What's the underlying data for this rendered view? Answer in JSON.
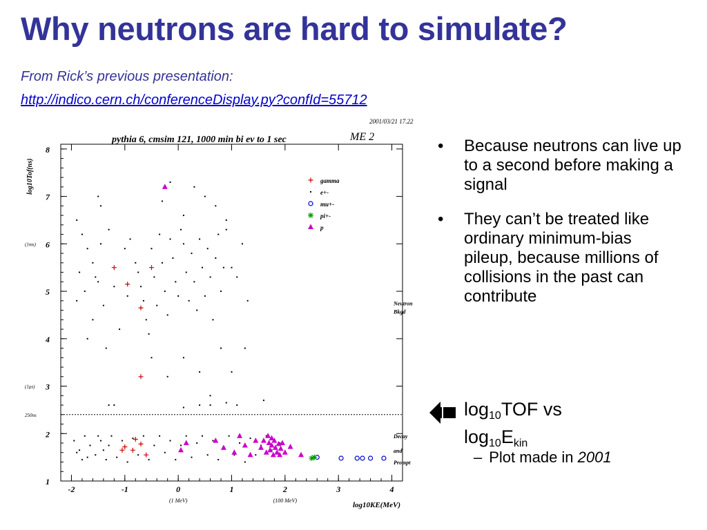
{
  "slide": {
    "title": "Why neutrons are hard to simulate?",
    "subtitle": "From Rick’s previous presentation:",
    "link": "http://indico.cern.ch/conferenceDisplay.py?confId=55712"
  },
  "bullets": {
    "marker": "•",
    "item1": "Because neutrons can live up to a second before making a signal",
    "item2": "They can’t be treated like ordinary minimum-bias pileup, because millions of collisions in the past can contribute",
    "log_main_a": "log",
    "log_sub_a": "10",
    "log_main_b": "TOF vs",
    "log_main_c": "log",
    "log_sub_c": "10",
    "log_main_d": "E",
    "log_sub_d": "kin",
    "sub_dash": "–",
    "sub_text": "Plot made in ",
    "sub_year": "2001"
  },
  "chart_data": {
    "type": "scatter",
    "title": "pythia 6, cmsim 121, 1000 min bi ev to 1 sec",
    "corner_label": "ME 2",
    "timestamp": "2001/03/21   17.22",
    "xlabel": "log10KE(MeV)",
    "ylabel": "log10Tof(ns)",
    "xlim": [
      -2.2,
      4.2
    ],
    "ylim": [
      1,
      8.1
    ],
    "xticks": [
      -2,
      -1,
      0,
      1,
      2,
      3,
      4
    ],
    "yticks": [
      1,
      2,
      3,
      4,
      5,
      6,
      7,
      8
    ],
    "x_annotations": [
      {
        "x": 0,
        "text": "(1 MeV)"
      },
      {
        "x": 2,
        "text": "(100 MeV)"
      }
    ],
    "y_annotations": [
      {
        "y": 6.0,
        "text": "(1ms)"
      },
      {
        "y": 3.0,
        "text": "(1μs)"
      },
      {
        "y": 2.4,
        "text": "250ns"
      }
    ],
    "threshold_line": {
      "y": 2.4,
      "style": "dashed"
    },
    "right_annotations": [
      {
        "y": 4.7,
        "lines": [
          "Neutron",
          "Bkgd"
        ]
      },
      {
        "y": 1.9,
        "lines": [
          "Decay"
        ]
      },
      {
        "y": 1.6,
        "lines": [
          "and"
        ]
      },
      {
        "y": 1.35,
        "lines": [
          "Prompt"
        ]
      }
    ],
    "legend_position": "top-right",
    "series": [
      {
        "name": "gamma",
        "marker": "plus",
        "color": "#cc0000",
        "points": [
          [
            -1.2,
            5.5
          ],
          [
            -0.95,
            5.15
          ],
          [
            -0.7,
            4.65
          ],
          [
            -0.5,
            5.5
          ],
          [
            -0.7,
            3.2
          ],
          [
            -0.8,
            1.88
          ],
          [
            -1.05,
            1.65
          ],
          [
            -0.85,
            1.65
          ],
          [
            -0.6,
            1.55
          ],
          [
            -0.7,
            1.78
          ],
          [
            -1.0,
            1.72
          ]
        ]
      },
      {
        "name": "e+-",
        "marker": "dot",
        "color": "#000000",
        "points": [
          [
            -1.9,
            6.5
          ],
          [
            -1.8,
            6.2
          ],
          [
            -1.7,
            5.9
          ],
          [
            -1.6,
            5.6
          ],
          [
            -1.85,
            5.4
          ],
          [
            -1.75,
            5.0
          ],
          [
            -1.9,
            4.8
          ],
          [
            -1.6,
            4.4
          ],
          [
            -1.7,
            4.0
          ],
          [
            -1.55,
            5.3
          ],
          [
            -1.45,
            6.0
          ],
          [
            -1.5,
            5.2
          ],
          [
            -1.4,
            4.7
          ],
          [
            -1.35,
            3.8
          ],
          [
            -1.3,
            6.3
          ],
          [
            -1.2,
            5.1
          ],
          [
            -1.1,
            4.2
          ],
          [
            -1.0,
            5.9
          ],
          [
            -0.95,
            4.9
          ],
          [
            -0.9,
            6.1
          ],
          [
            -0.8,
            5.6
          ],
          [
            -0.75,
            5.4
          ],
          [
            -0.7,
            5.1
          ],
          [
            -0.65,
            4.8
          ],
          [
            -0.6,
            4.4
          ],
          [
            -0.55,
            4.1
          ],
          [
            -0.5,
            5.9
          ],
          [
            -0.45,
            5.3
          ],
          [
            -0.4,
            4.7
          ],
          [
            -0.35,
            6.2
          ],
          [
            -0.3,
            5.6
          ],
          [
            -0.25,
            5.0
          ],
          [
            -0.2,
            4.5
          ],
          [
            -0.15,
            6.1
          ],
          [
            -0.1,
            5.7
          ],
          [
            -0.05,
            5.2
          ],
          [
            0.0,
            4.9
          ],
          [
            0.05,
            6.3
          ],
          [
            0.1,
            6.0
          ],
          [
            0.15,
            5.4
          ],
          [
            0.2,
            4.8
          ],
          [
            0.25,
            5.8
          ],
          [
            0.3,
            5.2
          ],
          [
            0.35,
            4.6
          ],
          [
            0.4,
            6.1
          ],
          [
            0.45,
            5.5
          ],
          [
            0.5,
            4.9
          ],
          [
            0.55,
            5.9
          ],
          [
            0.6,
            5.3
          ],
          [
            0.65,
            4.4
          ],
          [
            0.7,
            5.7
          ],
          [
            0.75,
            6.2
          ],
          [
            0.8,
            5.0
          ],
          [
            0.85,
            5.5
          ],
          [
            0.9,
            6.3
          ],
          [
            1.0,
            5.5
          ],
          [
            1.1,
            5.3
          ],
          [
            1.2,
            6.0
          ],
          [
            1.3,
            4.8
          ],
          [
            1.25,
            3.8
          ],
          [
            -0.3,
            6.9
          ],
          [
            -0.15,
            7.3
          ],
          [
            0.1,
            6.6
          ],
          [
            0.3,
            7.2
          ],
          [
            0.5,
            7.0
          ],
          [
            0.7,
            6.8
          ],
          [
            0.9,
            6.5
          ],
          [
            -1.5,
            7.0
          ],
          [
            -1.45,
            6.8
          ],
          [
            -0.5,
            3.6
          ],
          [
            -0.2,
            3.2
          ],
          [
            0.1,
            3.6
          ],
          [
            0.4,
            3.3
          ],
          [
            0.6,
            2.8
          ],
          [
            0.8,
            3.8
          ],
          [
            1.0,
            3.3
          ],
          [
            -1.3,
            2.6
          ],
          [
            -1.2,
            2.6
          ],
          [
            0.1,
            2.55
          ],
          [
            0.4,
            2.6
          ],
          [
            0.6,
            2.6
          ],
          [
            0.9,
            2.65
          ],
          [
            1.6,
            2.7
          ],
          [
            1.1,
            2.6
          ],
          [
            -1.75,
            1.95
          ],
          [
            -1.9,
            1.6
          ],
          [
            -1.8,
            1.45
          ],
          [
            -1.65,
            1.75
          ],
          [
            -1.55,
            1.55
          ],
          [
            -1.45,
            1.85
          ],
          [
            -1.35,
            1.45
          ],
          [
            -1.25,
            1.95
          ],
          [
            -1.15,
            1.5
          ],
          [
            -1.05,
            1.85
          ],
          [
            -0.95,
            1.4
          ],
          [
            -0.85,
            1.9
          ],
          [
            -0.75,
            1.55
          ],
          [
            -0.65,
            1.95
          ],
          [
            -0.55,
            1.45
          ],
          [
            -0.45,
            1.75
          ],
          [
            -0.35,
            1.95
          ],
          [
            -0.25,
            1.6
          ],
          [
            -0.15,
            1.85
          ],
          [
            -0.05,
            1.45
          ],
          [
            0.05,
            1.75
          ],
          [
            0.15,
            1.95
          ],
          [
            0.25,
            1.5
          ],
          [
            0.35,
            1.8
          ],
          [
            0.45,
            1.95
          ],
          [
            0.55,
            1.55
          ],
          [
            0.65,
            1.85
          ],
          [
            0.75,
            1.45
          ],
          [
            0.85,
            1.7
          ],
          [
            0.95,
            1.95
          ],
          [
            1.05,
            1.55
          ],
          [
            1.15,
            1.8
          ],
          [
            1.25,
            1.4
          ],
          [
            1.35,
            1.9
          ],
          [
            1.45,
            1.55
          ],
          [
            1.55,
            1.75
          ],
          [
            1.65,
            1.95
          ],
          [
            1.75,
            1.65
          ],
          [
            1.9,
            1.8
          ],
          [
            -1.95,
            1.85
          ],
          [
            -1.85,
            1.65
          ],
          [
            -1.7,
            1.5
          ],
          [
            -1.5,
            1.95
          ],
          [
            -1.4,
            1.65
          ],
          [
            -1.3,
            1.75
          ]
        ]
      },
      {
        "name": "mu+-",
        "marker": "circle",
        "color": "#0000cc",
        "points": [
          [
            2.6,
            1.5
          ],
          [
            3.05,
            1.48
          ],
          [
            3.35,
            1.48
          ],
          [
            3.45,
            1.48
          ],
          [
            3.6,
            1.48
          ],
          [
            3.85,
            1.48
          ]
        ]
      },
      {
        "name": "pi+-",
        "marker": "star",
        "color": "#009900",
        "points": [
          [
            2.55,
            1.5
          ],
          [
            2.5,
            1.48
          ]
        ]
      },
      {
        "name": "p",
        "marker": "triangle",
        "color": "#cc00cc",
        "points": [
          [
            -0.25,
            7.2
          ],
          [
            0.15,
            1.8
          ],
          [
            0.05,
            1.65
          ],
          [
            0.7,
            1.85
          ],
          [
            0.85,
            1.7
          ],
          [
            1.05,
            1.6
          ],
          [
            1.15,
            1.95
          ],
          [
            1.25,
            1.75
          ],
          [
            1.35,
            1.55
          ],
          [
            1.45,
            1.85
          ],
          [
            1.55,
            1.7
          ],
          [
            1.6,
            1.85
          ],
          [
            1.65,
            1.6
          ],
          [
            1.7,
            1.8
          ],
          [
            1.72,
            1.65
          ],
          [
            1.75,
            1.75
          ],
          [
            1.78,
            1.55
          ],
          [
            1.8,
            1.85
          ],
          [
            1.82,
            1.7
          ],
          [
            1.85,
            1.6
          ],
          [
            1.88,
            1.78
          ],
          [
            1.9,
            1.55
          ],
          [
            1.92,
            1.68
          ],
          [
            1.95,
            1.8
          ],
          [
            2.0,
            1.6
          ],
          [
            2.1,
            1.72
          ],
          [
            2.3,
            1.55
          ],
          [
            1.68,
            1.95
          ],
          [
            1.75,
            1.9
          ]
        ]
      }
    ]
  }
}
